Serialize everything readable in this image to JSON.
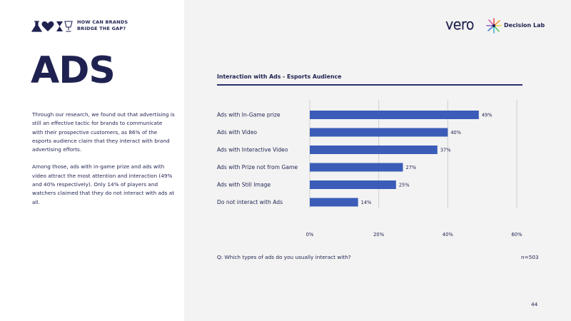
{
  "header": {
    "tagline_line1": "HOW CAN BRANDS",
    "tagline_line2": "BRIDGE THE GAP?",
    "partner_logos": [
      "vero",
      "Decision Lab"
    ]
  },
  "page": {
    "title": "ADS",
    "paragraph1": "Through our research, we found out that advertising is still an effective tactic for brands to communicate with their prospective customers, as 86% of the esports audience claim that they interact with brand advertising efforts.",
    "paragraph2": "Among those, ads with in-game prize and ads with video attract the most attention and interaction (49% and 40% respectively). Only 14% of players and watchers claimed that they do not interact with ads at all.",
    "question": "Q: Which types of ads do you usually interact with?",
    "sample_size": "n=503",
    "page_number": "44"
  },
  "colors": {
    "navy": "#1f2250",
    "bar": "#3b5db8",
    "panel_bg": "#f3f3f3"
  },
  "chart_data": {
    "type": "bar",
    "orientation": "horizontal",
    "title": "Interaction with Ads - Esports Audience",
    "categories": [
      "Ads with In-Game prize",
      "Ads with Video",
      "Ads with Interactive Video",
      "Ads with Prize not from Game",
      "Ads with Still Image",
      "Do not interact with Ads"
    ],
    "values": [
      49,
      40,
      37,
      27,
      25,
      14
    ],
    "value_labels": [
      "49%",
      "40%",
      "37%",
      "27%",
      "25%",
      "14%"
    ],
    "xlim": [
      0,
      60
    ],
    "x_ticks": [
      0,
      20,
      40,
      60
    ],
    "x_tick_labels": [
      "0%",
      "20%",
      "40%",
      "60%"
    ],
    "grid": true
  }
}
